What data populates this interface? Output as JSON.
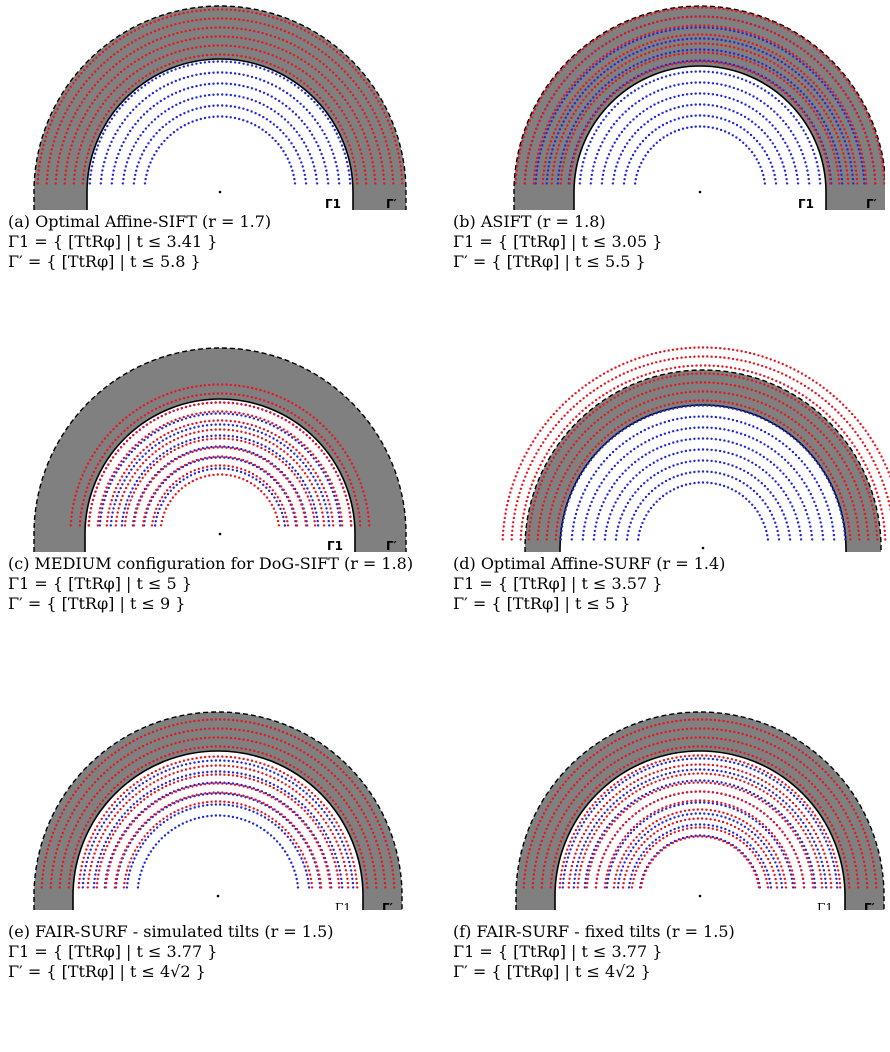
{
  "colors": {
    "ring": "#808080",
    "red": "#e8141e",
    "blue": "#1e28dc",
    "line": "#000000"
  },
  "panels": [
    {
      "caption": "(a) Optimal Affine-SIFT (r = 1.7)",
      "gamma1": "Γ1 = { [TtRφ] | t ≤ 3.41 }",
      "gammaPrime": "Γ′ = { [TtRφ] | t ≤ 5.8 }",
      "label_inner": "Γ1",
      "label_outer": "Γ′",
      "r": 1.7,
      "t_inner": 3.41,
      "t_outer": 5.8
    },
    {
      "caption": "(b) ASIFT (r = 1.8)",
      "gamma1": "Γ1 = { [TtRφ] | t ≤ 3.05 }",
      "gammaPrime": "Γ′ = { [TtRφ] | t ≤ 5.5 }",
      "label_inner": "Γ1",
      "label_outer": "Γ′",
      "r": 1.8,
      "t_inner": 3.05,
      "t_outer": 5.5
    },
    {
      "caption": "(c) MEDIUM configuration for DoG-SIFT (r = 1.8)",
      "gamma1": "Γ1 = { [TtRφ] | t ≤ 5 }",
      "gammaPrime": "Γ′ = { [TtRφ] | t ≤ 9 }",
      "label_inner": "Γ1",
      "label_outer": "Γ′",
      "r": 1.8,
      "t_inner": 5,
      "t_outer": 9
    },
    {
      "caption": "(d) Optimal Affine-SURF (r = 1.4)",
      "gamma1": "Γ1 = { [TtRφ] | t ≤ 3.57 }",
      "gammaPrime": "Γ′ = { [TtRφ] | t ≤ 5 }",
      "label_inner": "Γ1",
      "label_outer": "Γ′",
      "r": 1.4,
      "t_inner": 3.57,
      "t_outer": 5
    },
    {
      "caption": "(e) FAIR-SURF - simulated tilts (r = 1.5)",
      "gamma1": "Γ1 = { [TtRφ] | t ≤ 3.77 }",
      "gammaPrime": "Γ′ = { [TtRφ] | t ≤ 4√2 }",
      "label_inner": "Γ1",
      "label_outer": "Γ′",
      "r": 1.5,
      "t_inner": 3.77,
      "t_outer": 5.66
    },
    {
      "caption": "(f) FAIR-SURF - fixed tilts (r = 1.5)",
      "gamma1": "Γ1 = { [TtRφ] | t ≤ 3.77 }",
      "gammaPrime": "Γ′ = { [TtRφ] | t ≤ 4√2 }",
      "label_inner": "Γ1",
      "label_outer": "Γ′",
      "r": 1.5,
      "t_inner": 3.77,
      "t_outer": 5.66
    }
  ]
}
